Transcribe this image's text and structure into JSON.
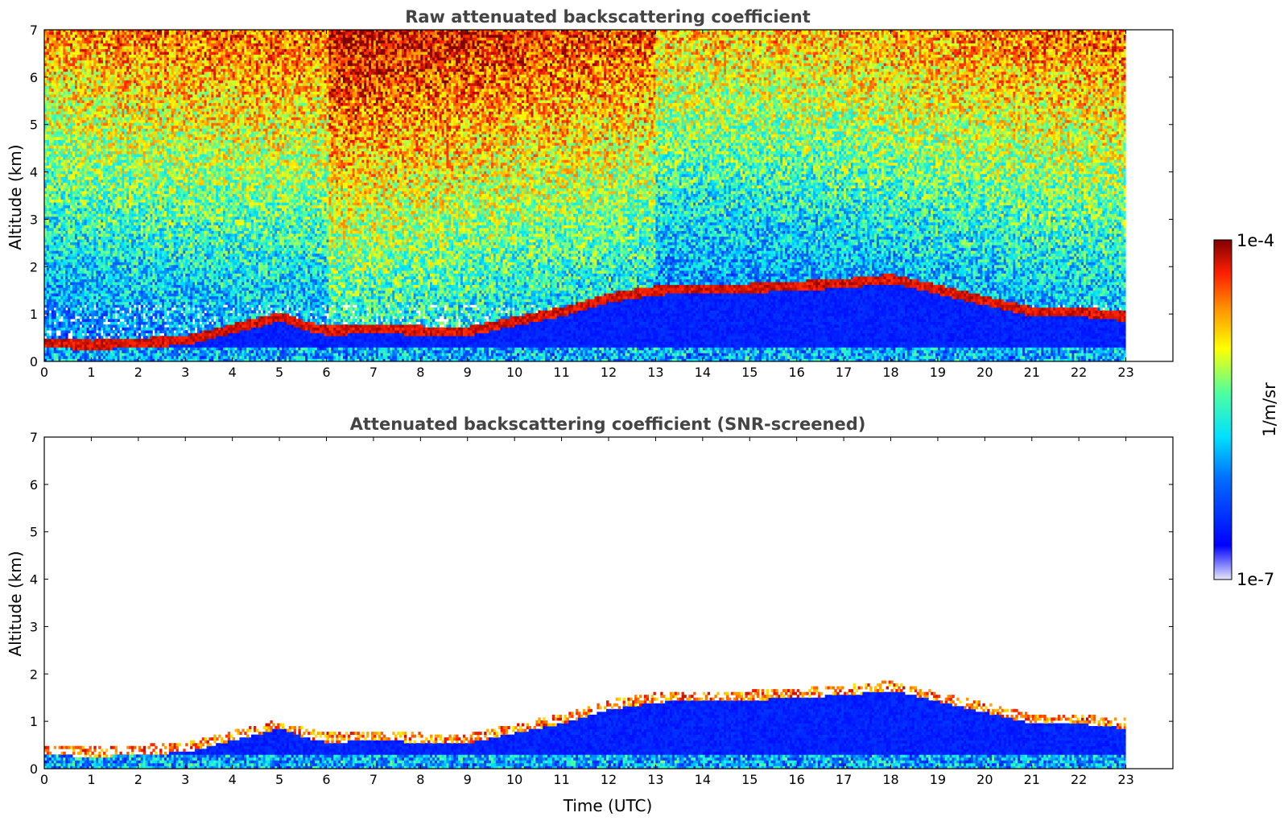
{
  "chart_data": [
    {
      "type": "heatmap",
      "title": "Raw attenuated backscattering coefficient",
      "ylabel": "Altitude (km)",
      "xlabel": "",
      "xlim": [
        0,
        24
      ],
      "ylim": [
        0,
        7
      ],
      "xticks": [
        "0",
        "1",
        "2",
        "3",
        "4",
        "5",
        "6",
        "7",
        "8",
        "9",
        "10",
        "11",
        "12",
        "13",
        "14",
        "15",
        "16",
        "17",
        "18",
        "19",
        "20",
        "21",
        "22",
        "23"
      ],
      "yticks": [
        "0",
        "1",
        "2",
        "3",
        "4",
        "5",
        "6",
        "7"
      ],
      "data_end_time": 23,
      "noise": "high",
      "boundary_layer_top_km": [
        [
          0,
          0.35
        ],
        [
          1,
          0.3
        ],
        [
          2,
          0.35
        ],
        [
          3,
          0.4
        ],
        [
          4,
          0.65
        ],
        [
          5,
          0.9
        ],
        [
          5.5,
          0.7
        ],
        [
          6,
          0.6
        ],
        [
          7,
          0.65
        ],
        [
          8,
          0.6
        ],
        [
          9,
          0.6
        ],
        [
          10,
          0.8
        ],
        [
          11,
          1.0
        ],
        [
          12,
          1.3
        ],
        [
          13,
          1.45
        ],
        [
          14,
          1.5
        ],
        [
          15,
          1.5
        ],
        [
          16,
          1.55
        ],
        [
          17,
          1.6
        ],
        [
          18,
          1.7
        ],
        [
          21,
          1.0
        ],
        [
          22,
          1.0
        ],
        [
          23,
          0.9
        ]
      ]
    },
    {
      "type": "heatmap",
      "title": "Attenuated backscattering coefficient (SNR-screened)",
      "ylabel": "Altitude (km)",
      "xlabel": "Time (UTC)",
      "xlim": [
        0,
        24
      ],
      "ylim": [
        0,
        7
      ],
      "xticks": [
        "0",
        "1",
        "2",
        "3",
        "4",
        "5",
        "6",
        "7",
        "8",
        "9",
        "10",
        "11",
        "12",
        "13",
        "14",
        "15",
        "16",
        "17",
        "18",
        "19",
        "20",
        "21",
        "22",
        "23"
      ],
      "yticks": [
        "0",
        "1",
        "2",
        "3",
        "4",
        "5",
        "6",
        "7"
      ],
      "data_end_time": 23,
      "noise": "screened"
    }
  ],
  "colorbar": {
    "max_label": "1e-4",
    "min_label": "1e-7",
    "unit_label": "1/m/sr",
    "colormap": "jet"
  }
}
